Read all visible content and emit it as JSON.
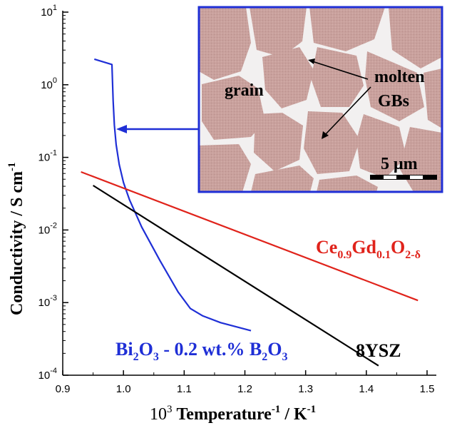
{
  "chart_data": {
    "type": "line",
    "title": "",
    "xlabel": {
      "prefix": "10",
      "prefix_sup": "3",
      "main": "Temperature",
      "main_sup": "-1",
      "sep": " / ",
      "unit": "K",
      "unit_sup": "-1"
    },
    "ylabel": {
      "main": "Conductivity  / S cm",
      "sup": "-1"
    },
    "x_scale": "linear",
    "y_scale": "log",
    "xlim": [
      0.9,
      1.5
    ],
    "ylim": [
      0.0001,
      10
    ],
    "x_ticks": [
      "0.9",
      "1.0",
      "1.1",
      "1.2",
      "1.3",
      "1.4",
      "1.5"
    ],
    "y_ticks": [
      {
        "value": 0.0001,
        "base": "10",
        "exp": "-4"
      },
      {
        "value": 0.001,
        "base": "10",
        "exp": "-3"
      },
      {
        "value": 0.01,
        "base": "10",
        "exp": "-2"
      },
      {
        "value": 0.1,
        "base": "10",
        "exp": "-1"
      },
      {
        "value": 1,
        "base": "10",
        "exp": "0"
      },
      {
        "value": 10,
        "base": "10",
        "exp": "1"
      }
    ],
    "grid": false,
    "series": [
      {
        "label_parts": [
          {
            "t": "Bi",
            "s": ""
          },
          {
            "t": "2",
            "s": "sub"
          },
          {
            "t": "O",
            "s": ""
          },
          {
            "t": "3",
            "s": "sub"
          },
          {
            "t": " - 0.2 wt.% B",
            "s": ""
          },
          {
            "t": "2",
            "s": "sub"
          },
          {
            "t": "O",
            "s": ""
          },
          {
            "t": "3",
            "s": "sub"
          }
        ],
        "color": "#1f2fd6",
        "x": [
          0.952,
          0.981,
          0.983,
          0.985,
          0.988,
          0.993,
          1.0,
          1.01,
          1.03,
          1.06,
          1.09,
          1.11,
          1.13,
          1.16,
          1.21
        ],
        "y": [
          2.25,
          1.9,
          0.6,
          0.28,
          0.15,
          0.08,
          0.045,
          0.026,
          0.011,
          0.0038,
          0.0014,
          0.00083,
          0.00066,
          0.00053,
          0.00041
        ]
      },
      {
        "label_parts": [
          {
            "t": "Ce",
            "s": ""
          },
          {
            "t": "0.9",
            "s": "sub"
          },
          {
            "t": "Gd",
            "s": ""
          },
          {
            "t": "0.1",
            "s": "sub"
          },
          {
            "t": "O",
            "s": ""
          },
          {
            "t": "2-δ",
            "s": "sub"
          }
        ],
        "color": "#e0231b",
        "x": [
          0.93,
          1.485
        ],
        "y": [
          0.063,
          0.00107
        ]
      },
      {
        "label_parts": [
          {
            "t": "8YSZ",
            "s": ""
          }
        ],
        "color": "#000000",
        "x": [
          0.95,
          1.42
        ],
        "y": [
          0.041,
          0.000135
        ]
      }
    ],
    "annotations": [
      "grain",
      "molten",
      "GBs",
      "5 μm"
    ]
  },
  "inset": {
    "name": "micrograph",
    "border_color": "#1f2fd6",
    "arrow_color": "#1f2fd6",
    "grain_color": "#c9a19d",
    "boundary_color": "#f2f0f0",
    "labels": {
      "grain": "grain",
      "molten": "molten",
      "gbs": "GBs",
      "scale": "5 μm"
    }
  }
}
